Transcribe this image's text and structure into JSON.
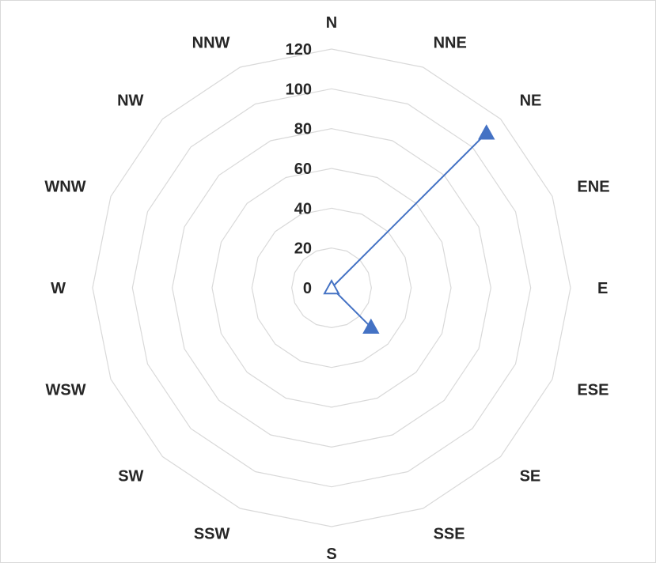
{
  "chart_data": {
    "type": "radar",
    "categories": [
      "N",
      "NNE",
      "NE",
      "ENE",
      "E",
      "ESE",
      "SE",
      "SSE",
      "S",
      "SSW",
      "SW",
      "WSW",
      "W",
      "WNW",
      "NW",
      "NNW"
    ],
    "series": [
      {
        "values": [
          0,
          0,
          110,
          0,
          0,
          0,
          28,
          0,
          0,
          0,
          0,
          0,
          0,
          0,
          0,
          0
        ],
        "color": "#4472c4",
        "marker": "triangle"
      }
    ],
    "ticks": [
      "0",
      "20",
      "40",
      "60",
      "80",
      "100",
      "120"
    ],
    "rlim": [
      0,
      120
    ],
    "grid": true,
    "title": "",
    "legend": "none"
  }
}
